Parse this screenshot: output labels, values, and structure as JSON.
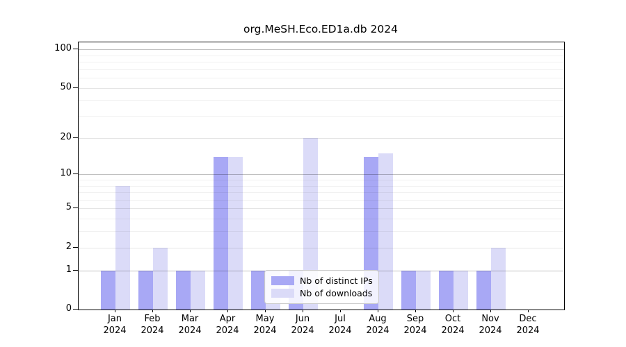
{
  "chart_data": {
    "type": "bar",
    "title": "org.MeSH.Eco.ED1a.db 2024",
    "categories": [
      "Jan",
      "Feb",
      "Mar",
      "Apr",
      "May",
      "Jun",
      "Jul",
      "Aug",
      "Sep",
      "Oct",
      "Nov",
      "Dec"
    ],
    "category_year": "2024",
    "series": [
      {
        "name": "Nb of distinct IPs",
        "color": "#a8a8f5",
        "values": [
          1,
          1,
          1,
          14,
          1,
          1,
          0,
          14,
          1,
          1,
          1,
          0
        ]
      },
      {
        "name": "Nb of downloads",
        "color": "#dbdbf8",
        "values": [
          8,
          2,
          1,
          14,
          1,
          20,
          0,
          15,
          1,
          1,
          2,
          0
        ]
      }
    ],
    "yscale": "log1p",
    "ylim": [
      0,
      100
    ],
    "y_ticks": [
      0,
      1,
      2,
      5,
      10,
      20,
      50,
      100
    ],
    "y_minor_ticks": [
      3,
      4,
      6,
      7,
      8,
      9,
      30,
      40,
      60,
      70,
      80,
      90
    ],
    "grid": "on",
    "legend_position": "bottom-center"
  }
}
